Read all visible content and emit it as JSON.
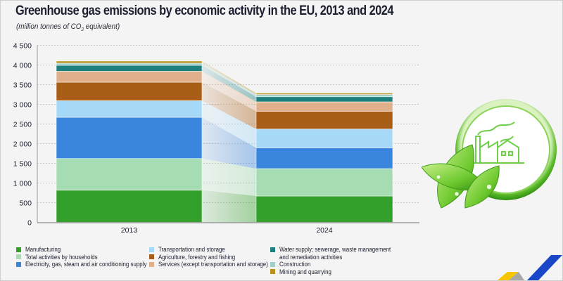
{
  "chart_data": {
    "type": "bar",
    "stacked": true,
    "title": "Greenhouse gas emissions by economic activity in the EU, 2013 and 2024",
    "subtitle_prefix": "(million tonnes of CO",
    "subtitle_sub": "2",
    "subtitle_suffix": " equivalent)",
    "xlabel": "",
    "ylabel": "",
    "ylim": [
      0,
      4500
    ],
    "yticks": [
      0,
      500,
      1000,
      1500,
      2000,
      2500,
      3000,
      3500,
      4000,
      4500
    ],
    "ytick_labels": [
      "0",
      "500",
      "1 000",
      "1 500",
      "2 000",
      "2 500",
      "3 000",
      "3 500",
      "4 000",
      "4 500"
    ],
    "grid": true,
    "legend_position": "bottom",
    "categories": [
      "2013",
      "2024"
    ],
    "series": [
      {
        "name": "Manufacturing",
        "color": "#33a02c",
        "values": [
          818,
          670
        ]
      },
      {
        "name": "Total activities by households",
        "color": "#a6dcb2",
        "values": [
          804,
          696
        ]
      },
      {
        "name": "Electricity, gas, steam and air conditioning supply",
        "color": "#3a86de",
        "values": [
          1048,
          530
        ]
      },
      {
        "name": "Transportation and storage",
        "color": "#a6d9f7",
        "values": [
          423,
          475
        ]
      },
      {
        "name": "Agriculture, forestry and fishing",
        "color": "#a85e17",
        "values": [
          470,
          454
        ]
      },
      {
        "name": "Services (except transportation and storage)",
        "color": "#e0b08c",
        "values": [
          277,
          238
        ]
      },
      {
        "name": "Water supply; sewerage, waste management\nand remediation activities",
        "color": "#1f7f7f",
        "values": [
          152,
          130
        ]
      },
      {
        "name": "Construction",
        "color": "#9fd0cc",
        "values": [
          54,
          55
        ]
      },
      {
        "name": "Mining and quarrying",
        "color": "#b8901e",
        "values": [
          54,
          36
        ]
      }
    ]
  },
  "decor": {
    "emblem": "eco-factory-leaves-icon",
    "corner": "brand-stripes-logo",
    "corner_colors": [
      "#f7c600",
      "#9a9a9a",
      "#1a47c8"
    ]
  }
}
